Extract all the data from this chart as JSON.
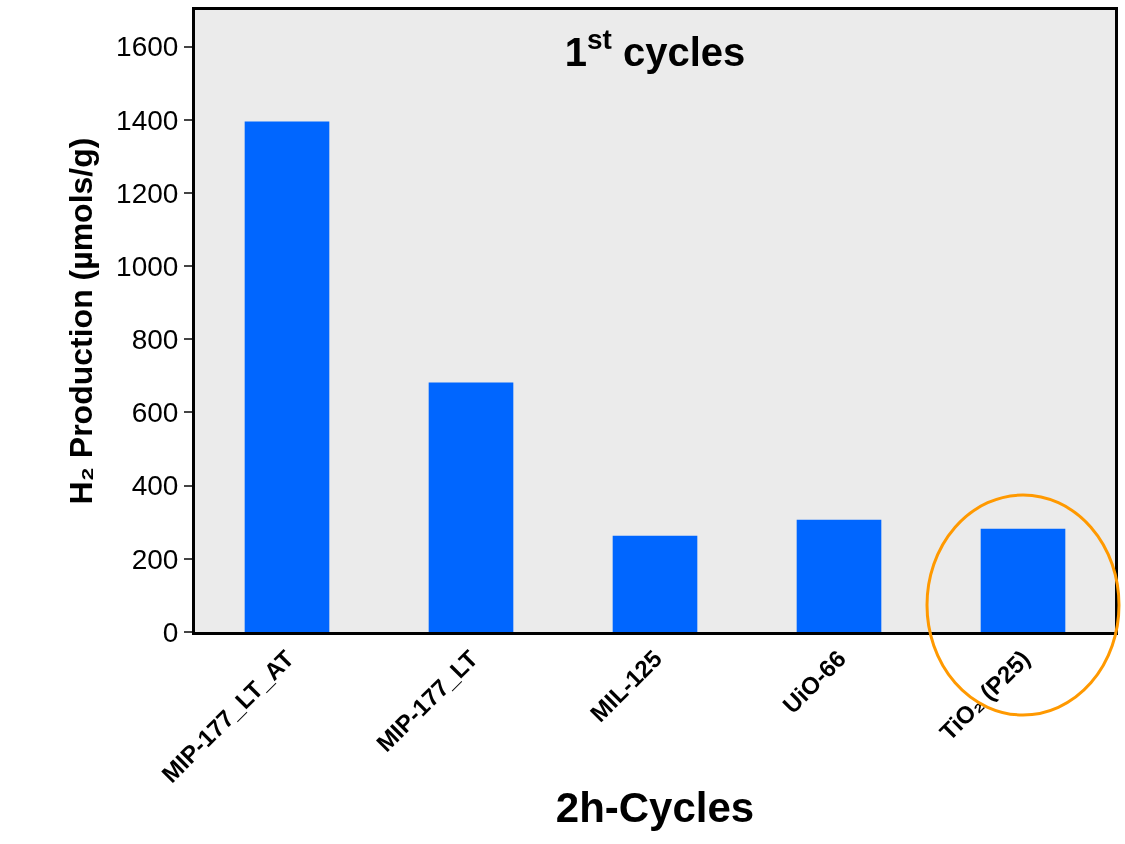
{
  "chart_data": {
    "type": "bar",
    "title": "1$^{st}$ cycles",
    "xlabel": "2h-Cycles",
    "ylabel": "H₂ Production (µmols/g)",
    "categories": [
      "MIP-177_LT_AT",
      "MIP-177_LT",
      "MIL-125",
      "UiO-66",
      "TiO₂ (P25)"
    ],
    "values": [
      1395,
      682,
      263,
      307,
      282
    ],
    "color": "#0066ff",
    "ylim": [
      0,
      1700
    ],
    "yticks": [
      0,
      200,
      400,
      600,
      800,
      1000,
      1200,
      1400,
      1600
    ],
    "grid": false
  }
}
